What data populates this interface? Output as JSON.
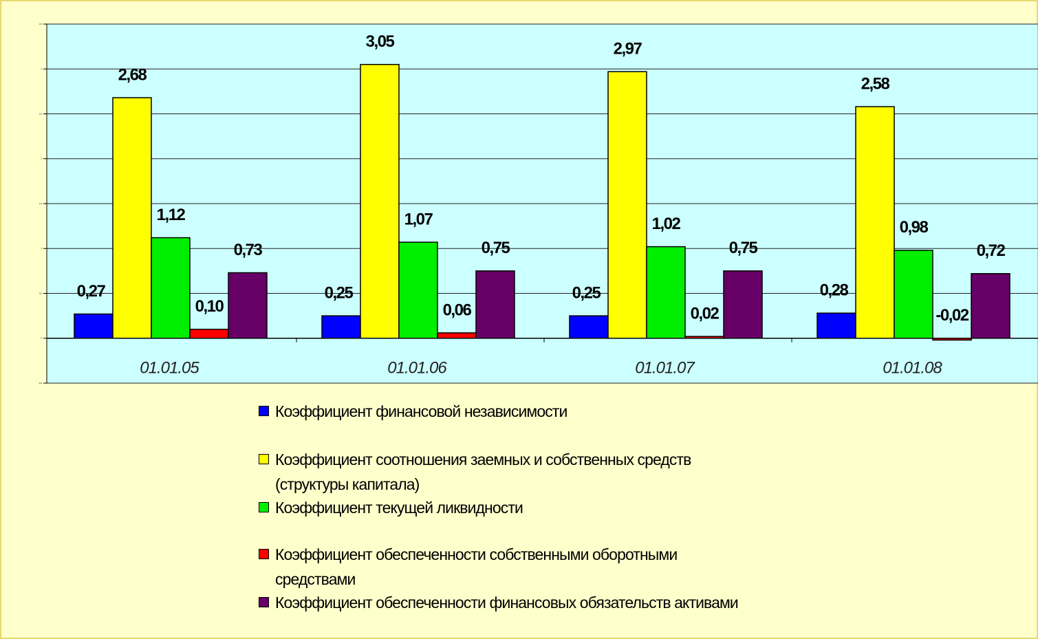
{
  "chart_data": {
    "type": "bar",
    "categories": [
      "01.01.05",
      "01.01.06",
      "01.01.07",
      "01.01.08"
    ],
    "ylim": [
      -0.5,
      3.5
    ],
    "yticks": [
      -0.5,
      0,
      0.5,
      1,
      1.5,
      2,
      2.5,
      3,
      3.5
    ],
    "grid": true,
    "series": [
      {
        "name": "Коэффициент финансовой независимости",
        "color": "#0000ff",
        "values": [
          0.27,
          0.25,
          0.25,
          0.28
        ],
        "value_labels": [
          "0,27",
          "0,25",
          "0,25",
          "0,28"
        ]
      },
      {
        "name": "Коэффициент соотношения заемных и собственных средств (структуры капитала)",
        "color": "#ffff00",
        "values": [
          2.68,
          3.05,
          2.97,
          2.58
        ],
        "value_labels": [
          "2,68",
          "3,05",
          "2,97",
          "2,58"
        ]
      },
      {
        "name": "Коэффициент текущей ликвидности",
        "color": "#00ee00",
        "values": [
          1.12,
          1.07,
          1.02,
          0.98
        ],
        "value_labels": [
          "1,12",
          "1,07",
          "1,02",
          "0,98"
        ]
      },
      {
        "name": "Коэффициент обеспеченности собственными оборотными средствами",
        "color": "#ff0000",
        "values": [
          0.1,
          0.06,
          0.02,
          -0.02
        ],
        "value_labels": [
          "0,10",
          "0,06",
          "0,02",
          "-0,02"
        ]
      },
      {
        "name": "Коэффициент обеспеченности финансовых обязательств активами",
        "color": "#660066",
        "values": [
          0.73,
          0.75,
          0.75,
          0.72
        ],
        "value_labels": [
          "0,73",
          "0,75",
          "0,75",
          "0,72"
        ]
      }
    ]
  }
}
